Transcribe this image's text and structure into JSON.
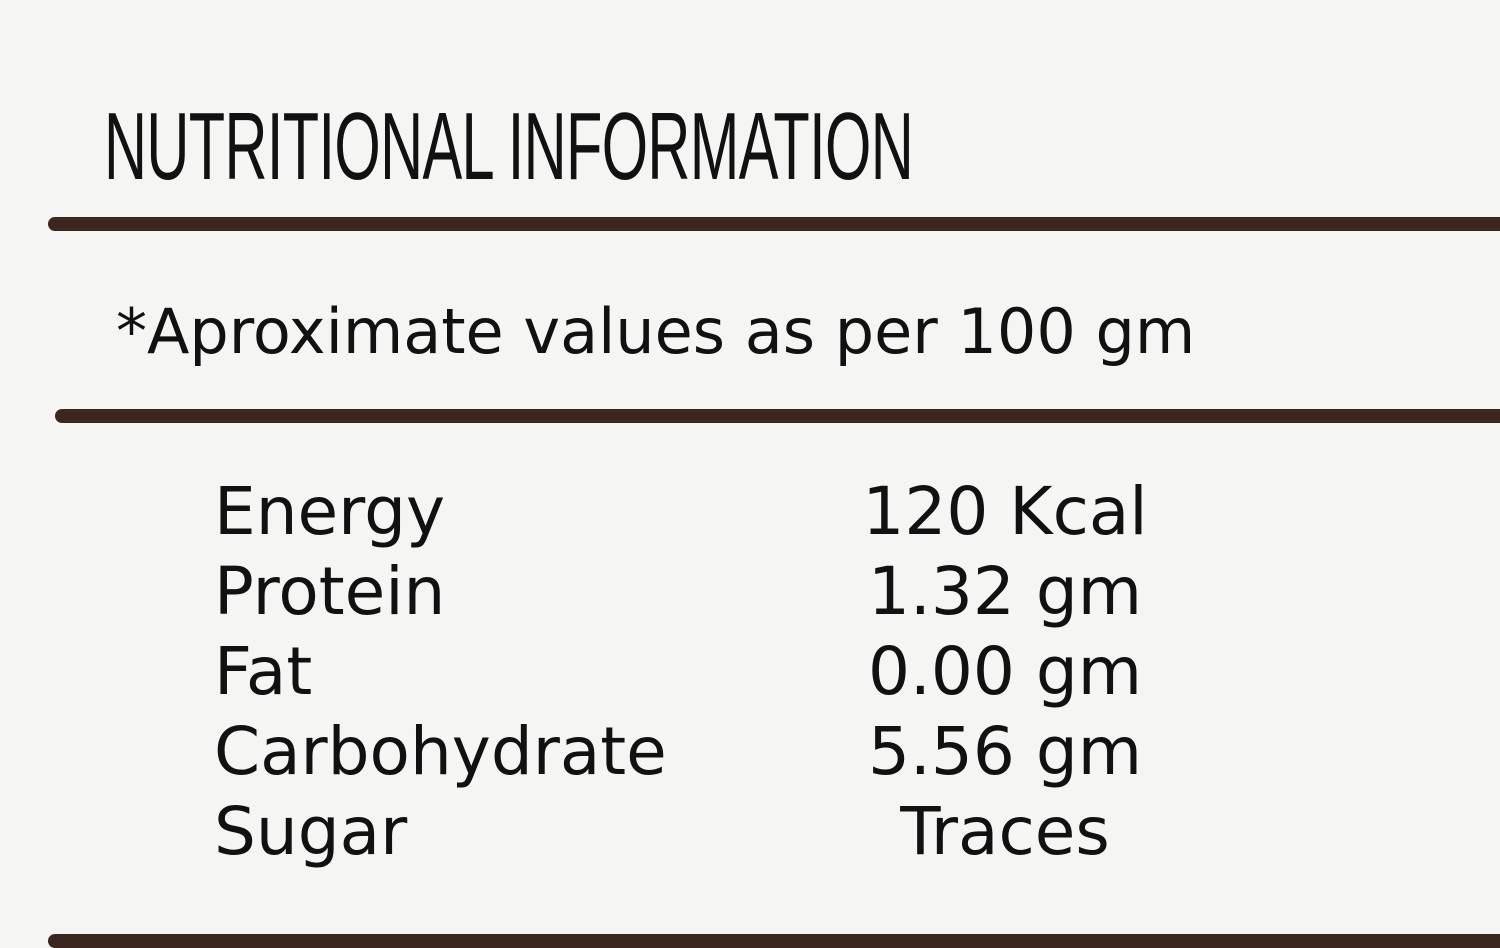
{
  "header": {
    "title": "NUTRITIONAL INFORMATION"
  },
  "note": "*Aproximate values as per 100 gm",
  "table": {
    "rows": [
      [
        "Energy",
        "120 Kcal"
      ],
      [
        "Protein",
        "1.32 gm"
      ],
      [
        "Fat",
        "0.00 gm"
      ],
      [
        "Carbohydrate",
        "5.56 gm"
      ],
      [
        "Sugar",
        "Traces"
      ]
    ]
  }
}
